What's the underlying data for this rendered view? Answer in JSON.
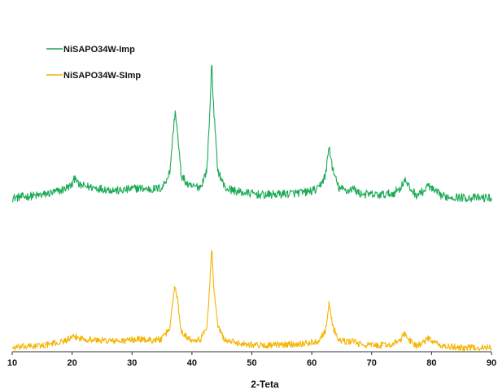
{
  "chart_data": {
    "type": "line",
    "xlabel": "2-Teta",
    "ylabel": "",
    "xlim": [
      10,
      90
    ],
    "xticks": [
      10,
      20,
      30,
      40,
      50,
      60,
      70,
      80,
      90
    ],
    "y_axis_shown": false,
    "grid": false,
    "legend_position": "top-left",
    "series": [
      {
        "name": "NiSAPO34W-Imp",
        "color": "#1aaa55",
        "x": [
          10,
          15,
          18,
          20,
          20.6,
          21,
          24,
          28,
          31,
          33,
          35,
          36.3,
          36.9,
          37.2,
          37.5,
          38.2,
          39.5,
          41.5,
          42.5,
          43.0,
          43.3,
          43.6,
          44.3,
          45.5,
          48,
          52,
          56,
          59,
          61,
          62.3,
          62.9,
          63.5,
          64.5,
          66,
          66.8,
          68,
          71,
          73.5,
          74.8,
          75.5,
          76.3,
          77.5,
          78.8,
          79.5,
          80.3,
          82,
          86,
          90
        ],
        "y": [
          0.0,
          0.02,
          0.05,
          0.09,
          0.16,
          0.09,
          0.07,
          0.05,
          0.07,
          0.06,
          0.07,
          0.18,
          0.48,
          0.62,
          0.5,
          0.16,
          0.08,
          0.08,
          0.2,
          0.62,
          0.98,
          0.65,
          0.2,
          0.07,
          0.04,
          0.02,
          0.03,
          0.04,
          0.06,
          0.16,
          0.37,
          0.2,
          0.07,
          0.05,
          0.07,
          0.03,
          0.02,
          0.03,
          0.07,
          0.13,
          0.07,
          0.02,
          0.05,
          0.09,
          0.05,
          0.01,
          0.0,
          0.0
        ]
      },
      {
        "name": "NiSAPO34W-SImp",
        "color": "#f4b400",
        "x": [
          10,
          15,
          18,
          20,
          20.6,
          21,
          24,
          28,
          31,
          33,
          35,
          36.3,
          36.9,
          37.2,
          37.5,
          38.2,
          39.5,
          41.5,
          42.5,
          43.0,
          43.3,
          43.6,
          44.3,
          45.5,
          48,
          52,
          56,
          59,
          61,
          62.3,
          62.9,
          63.5,
          64.5,
          66,
          66.8,
          68,
          71,
          73.5,
          74.8,
          75.5,
          76.3,
          77.5,
          78.8,
          79.5,
          80.3,
          82,
          86,
          90
        ],
        "y": [
          0.0,
          0.02,
          0.05,
          0.09,
          0.1,
          0.09,
          0.07,
          0.06,
          0.08,
          0.07,
          0.08,
          0.18,
          0.48,
          0.58,
          0.48,
          0.16,
          0.08,
          0.08,
          0.2,
          0.6,
          0.93,
          0.6,
          0.2,
          0.07,
          0.04,
          0.02,
          0.03,
          0.04,
          0.06,
          0.16,
          0.41,
          0.2,
          0.07,
          0.05,
          0.07,
          0.03,
          0.02,
          0.03,
          0.07,
          0.13,
          0.07,
          0.02,
          0.05,
          0.09,
          0.05,
          0.01,
          0.0,
          0.0
        ]
      }
    ]
  }
}
